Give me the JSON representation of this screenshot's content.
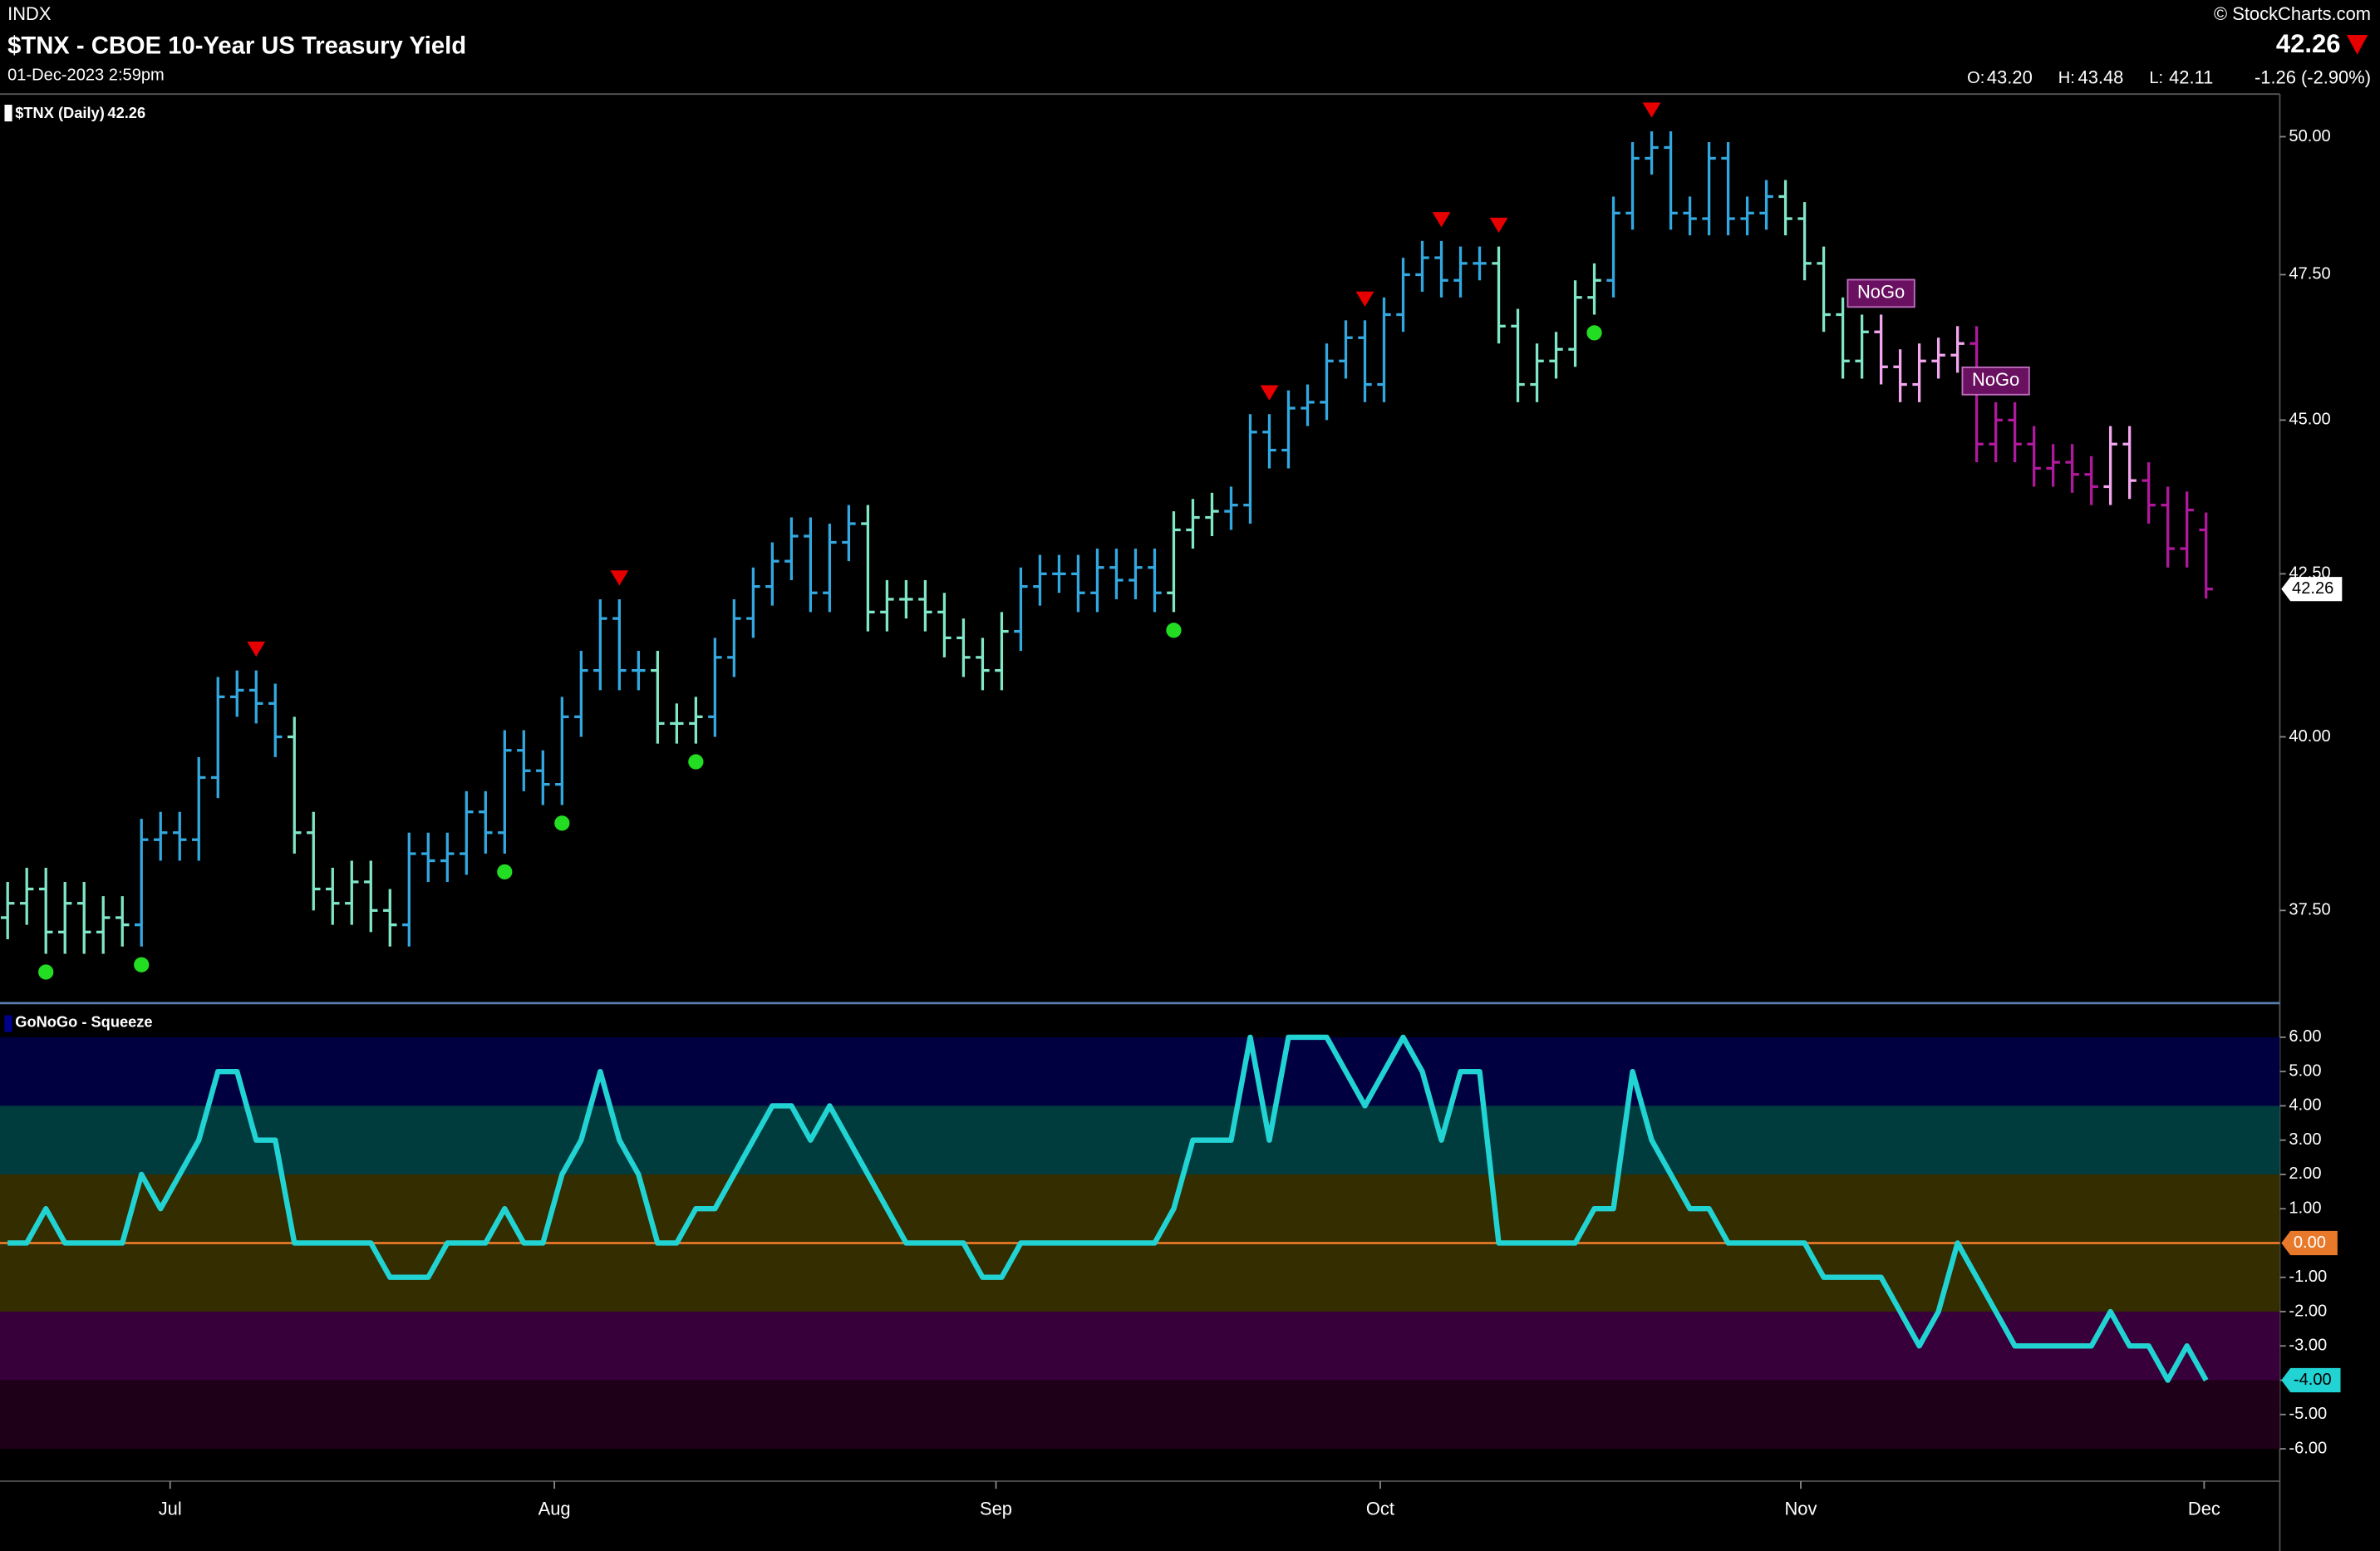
{
  "chart_data": [
    {
      "type": "ohlc",
      "exchange": "INDX",
      "title": "$TNX - CBOE 10-Year US Treasury Yield",
      "subtitle": "01-Dec-2023 2:59pm",
      "source": "© StockCharts.com",
      "quote": [
        {
          "label": "O:",
          "text": "43.20"
        },
        {
          "label": "H:",
          "text": "43.48"
        },
        {
          "label": "L:",
          "text": "42.11"
        }
      ],
      "change": "-1.26 (-2.90%)",
      "panel_label": "$TNX (Daily)",
      "open": [
        37.4,
        37.6,
        37.8,
        37.2,
        37.6,
        37.2,
        37.4,
        37.3,
        38.5,
        38.6,
        38.5,
        39.4,
        40.6,
        40.7,
        40.5,
        40.0,
        38.6,
        37.8,
        37.6,
        37.9,
        37.5,
        37.3,
        38.3,
        38.2,
        38.3,
        38.9,
        38.6,
        39.8,
        39.5,
        39.3,
        40.3,
        41.0,
        41.8,
        41.0,
        41.0,
        40.2,
        40.2,
        40.3,
        41.2,
        41.8,
        42.3,
        42.7,
        43.1,
        42.2,
        43.0,
        43.3,
        41.9,
        42.1,
        42.1,
        41.9,
        41.5,
        41.2,
        41.0,
        41.6,
        42.3,
        42.5,
        42.5,
        42.2,
        42.6,
        42.4,
        42.6,
        42.2,
        43.2,
        43.4,
        43.5,
        43.6,
        44.8,
        44.5,
        45.2,
        45.3,
        46.0,
        46.4,
        45.6,
        46.8,
        47.5,
        47.8,
        47.4,
        47.7,
        47.7,
        46.6,
        45.6,
        46.0,
        46.2,
        47.1,
        47.4,
        48.6,
        49.6,
        49.8,
        48.6,
        48.5,
        49.6,
        48.5,
        48.6,
        48.9,
        48.5,
        47.7,
        46.8,
        46.0,
        46.5,
        45.9,
        45.6,
        46.0,
        46.1,
        46.3,
        44.6,
        45.0,
        44.6,
        44.2,
        44.3,
        44.1,
        43.9,
        44.6,
        44.0,
        43.6,
        42.9,
        43.2
      ],
      "high": [
        37.9,
        38.1,
        38.1,
        37.9,
        37.9,
        37.7,
        37.7,
        38.8,
        38.9,
        38.9,
        39.7,
        40.9,
        41.0,
        41.0,
        40.8,
        40.3,
        38.9,
        38.1,
        38.2,
        38.2,
        37.8,
        38.6,
        38.6,
        38.6,
        39.2,
        39.2,
        40.1,
        40.1,
        39.8,
        40.6,
        41.3,
        42.1,
        42.1,
        41.3,
        41.3,
        40.5,
        40.6,
        41.5,
        42.1,
        42.6,
        43.0,
        43.4,
        43.4,
        43.3,
        43.6,
        43.6,
        42.4,
        42.4,
        42.4,
        42.2,
        41.8,
        41.5,
        41.9,
        42.6,
        42.8,
        42.8,
        42.8,
        42.9,
        42.9,
        42.9,
        42.9,
        43.5,
        43.7,
        43.8,
        43.9,
        45.1,
        45.1,
        45.5,
        45.6,
        46.3,
        46.7,
        46.7,
        47.1,
        47.8,
        48.1,
        48.1,
        48.0,
        48.0,
        48.0,
        46.9,
        46.3,
        46.5,
        47.4,
        47.7,
        48.9,
        49.9,
        50.1,
        50.1,
        48.9,
        49.9,
        49.9,
        48.9,
        49.2,
        49.2,
        48.8,
        48.0,
        47.1,
        46.8,
        46.8,
        46.2,
        46.3,
        46.4,
        46.6,
        46.6,
        45.3,
        45.3,
        44.9,
        44.6,
        44.6,
        44.4,
        44.9,
        44.9,
        44.3,
        43.9,
        43.82,
        43.48
      ],
      "low": [
        37.1,
        37.3,
        36.9,
        36.9,
        36.9,
        36.9,
        37.0,
        37.0,
        38.2,
        38.2,
        38.2,
        39.1,
        40.3,
        40.2,
        39.7,
        38.3,
        37.5,
        37.3,
        37.3,
        37.2,
        37.0,
        37.0,
        37.9,
        37.9,
        38.0,
        38.3,
        38.3,
        39.2,
        39.0,
        39.0,
        40.0,
        40.7,
        40.7,
        40.7,
        39.9,
        39.9,
        39.9,
        40.0,
        40.9,
        41.5,
        42.0,
        42.4,
        41.9,
        41.9,
        42.7,
        41.6,
        41.6,
        41.8,
        41.6,
        41.2,
        40.9,
        40.7,
        40.7,
        41.3,
        42.0,
        42.2,
        41.9,
        41.9,
        42.1,
        42.1,
        41.9,
        41.9,
        42.9,
        43.1,
        43.2,
        43.3,
        44.2,
        44.2,
        44.9,
        45.0,
        45.7,
        45.3,
        45.3,
        46.5,
        47.2,
        47.1,
        47.1,
        47.4,
        46.3,
        45.3,
        45.3,
        45.7,
        45.9,
        46.8,
        47.1,
        48.3,
        49.3,
        48.3,
        48.2,
        48.2,
        48.2,
        48.2,
        48.3,
        48.2,
        47.4,
        46.5,
        45.7,
        45.7,
        45.6,
        45.3,
        45.3,
        45.7,
        45.8,
        44.3,
        44.3,
        44.3,
        43.9,
        43.9,
        43.8,
        43.6,
        43.6,
        43.7,
        43.3,
        42.6,
        42.6,
        42.11
      ],
      "close": [
        37.6,
        37.8,
        37.2,
        37.6,
        37.2,
        37.4,
        37.3,
        38.5,
        38.6,
        38.5,
        39.4,
        40.6,
        40.7,
        40.5,
        40.0,
        38.6,
        37.8,
        37.6,
        37.9,
        37.5,
        37.3,
        38.3,
        38.2,
        38.3,
        38.9,
        38.6,
        39.8,
        39.5,
        39.3,
        40.3,
        41.0,
        41.8,
        41.0,
        41.0,
        40.2,
        40.2,
        40.3,
        41.2,
        41.8,
        42.3,
        42.7,
        43.1,
        42.2,
        43.0,
        43.3,
        41.9,
        42.1,
        42.1,
        41.9,
        41.5,
        41.2,
        41.0,
        41.6,
        42.3,
        42.5,
        42.5,
        42.2,
        42.6,
        42.4,
        42.6,
        42.2,
        43.2,
        43.4,
        43.5,
        43.6,
        44.8,
        44.5,
        45.2,
        45.3,
        46.0,
        46.4,
        45.6,
        46.8,
        47.5,
        47.8,
        47.4,
        47.7,
        47.7,
        46.6,
        45.6,
        46.0,
        46.2,
        47.1,
        47.4,
        48.6,
        49.6,
        49.8,
        48.6,
        48.5,
        49.6,
        48.5,
        48.6,
        48.9,
        48.5,
        47.7,
        46.8,
        46.0,
        46.5,
        45.9,
        45.6,
        46.0,
        46.1,
        46.3,
        44.6,
        45.0,
        44.6,
        44.2,
        44.3,
        44.1,
        43.9,
        44.6,
        44.0,
        43.6,
        42.9,
        43.52,
        42.26
      ],
      "colors": [
        "#80e6c8",
        "#80e6c8",
        "#80e6c8",
        "#80e6c8",
        "#80e6c8",
        "#80e6c8",
        "#80e6c8",
        "#33a8e0",
        "#33a8e0",
        "#33a8e0",
        "#33a8e0",
        "#33a8e0",
        "#33a8e0",
        "#33a8e0",
        "#33a8e0",
        "#80e6c8",
        "#80e6c8",
        "#80e6c8",
        "#80e6c8",
        "#80e6c8",
        "#80e6c8",
        "#33a8e0",
        "#33a8e0",
        "#33a8e0",
        "#33a8e0",
        "#33a8e0",
        "#33a8e0",
        "#33a8e0",
        "#33a8e0",
        "#33a8e0",
        "#33a8e0",
        "#33a8e0",
        "#33a8e0",
        "#33a8e0",
        "#80e6c8",
        "#80e6c8",
        "#80e6c8",
        "#33a8e0",
        "#33a8e0",
        "#33a8e0",
        "#33a8e0",
        "#33a8e0",
        "#33a8e0",
        "#33a8e0",
        "#33a8e0",
        "#80e6c8",
        "#80e6c8",
        "#80e6c8",
        "#80e6c8",
        "#80e6c8",
        "#80e6c8",
        "#80e6c8",
        "#80e6c8",
        "#33a8e0",
        "#33a8e0",
        "#33a8e0",
        "#33a8e0",
        "#33a8e0",
        "#33a8e0",
        "#33a8e0",
        "#33a8e0",
        "#80e6c8",
        "#80e6c8",
        "#80e6c8",
        "#33a8e0",
        "#33a8e0",
        "#33a8e0",
        "#33a8e0",
        "#33a8e0",
        "#33a8e0",
        "#33a8e0",
        "#33a8e0",
        "#33a8e0",
        "#33a8e0",
        "#33a8e0",
        "#33a8e0",
        "#33a8e0",
        "#33a8e0",
        "#80e6c8",
        "#80e6c8",
        "#80e6c8",
        "#80e6c8",
        "#80e6c8",
        "#80e6c8",
        "#33a8e0",
        "#33a8e0",
        "#33a8e0",
        "#33a8e0",
        "#33a8e0",
        "#33a8e0",
        "#33a8e0",
        "#33a8e0",
        "#33a8e0",
        "#80e6c8",
        "#80e6c8",
        "#80e6c8",
        "#80e6c8",
        "#80e6c8",
        "#f2a6ee",
        "#f2a6ee",
        "#f2a6ee",
        "#f2a6ee",
        "#f2a6ee",
        "#b0189e",
        "#b0189e",
        "#b0189e",
        "#b0189e",
        "#b0189e",
        "#b0189e",
        "#b0189e",
        "#f2a6ee",
        "#f2a6ee",
        "#b0189e",
        "#b0189e",
        "#b0189e",
        "#b0189e"
      ],
      "xlim": [
        -0.4,
        118.7
      ],
      "xticks": [
        {
          "value": 8.5,
          "label": "Jul"
        },
        {
          "value": 28.6,
          "label": "Aug"
        },
        {
          "value": 51.7,
          "label": "Sep"
        },
        {
          "value": 71.8,
          "label": "Oct"
        },
        {
          "value": 93.8,
          "label": "Nov"
        },
        {
          "value": 114.9,
          "label": "Dec"
        }
      ],
      "ylim": [
        36.25,
        50.77
      ],
      "log_scale": true,
      "yticks": [
        {
          "value": 37.5,
          "label": "37.50"
        },
        {
          "value": 40,
          "label": "40.00"
        },
        {
          "value": 42.5,
          "label": "42.50"
        },
        {
          "value": 45,
          "label": "45.00"
        },
        {
          "value": 47.5,
          "label": "47.50"
        },
        {
          "value": 50,
          "label": "50.00"
        }
      ],
      "go_dots": [
        2,
        7,
        26,
        29,
        36,
        61,
        83
      ],
      "go_dot_color": "#22dd22",
      "countertrend": [
        13,
        32,
        66,
        71,
        75,
        78,
        86
      ],
      "countertrend_color": "#e60000",
      "annotations": [
        {
          "text": "NoGo",
          "at": 98
        },
        {
          "text": "NoGo",
          "at": 104
        }
      ]
    },
    {
      "type": "line",
      "title": "GoNoGo - Squeeze",
      "color": "#22d3d3",
      "values": [
        0,
        0,
        1,
        0,
        0,
        0,
        0,
        2,
        1,
        2,
        3,
        5,
        5,
        3,
        3,
        0,
        0,
        0,
        0,
        0,
        -1,
        -1,
        -1,
        0,
        0,
        0,
        1,
        0,
        0,
        2,
        3,
        5,
        3,
        2,
        0,
        0,
        1,
        1,
        2,
        3,
        4,
        4,
        3,
        4,
        3,
        2,
        1,
        0,
        0,
        0,
        0,
        -1,
        -1,
        0,
        0,
        0,
        0,
        0,
        0,
        0,
        0,
        1,
        3,
        3,
        3,
        6,
        3,
        6,
        6,
        6,
        5,
        4,
        5,
        6,
        5,
        3,
        5,
        5,
        0,
        0,
        0,
        0,
        0,
        1,
        1,
        5,
        3,
        2,
        1,
        1,
        0,
        0,
        0,
        0,
        0,
        -1,
        -1,
        -1,
        -1,
        -2,
        -3,
        -2,
        0,
        -1,
        -2,
        -3,
        -3,
        -3,
        -3,
        -3,
        -2,
        -3,
        -3,
        -4,
        -3,
        -4
      ],
      "last_label": "-4.00",
      "ylim": [
        -6.9,
        6.95
      ],
      "yticks": [
        {
          "value": -6,
          "label": "-6.00"
        },
        {
          "value": -5,
          "label": "-5.00"
        },
        {
          "value": -4,
          "label": "-4.00"
        },
        {
          "value": -3,
          "label": "-3.00"
        },
        {
          "value": -2,
          "label": "-2.00"
        },
        {
          "value": -1,
          "label": "-1.00"
        },
        {
          "value": 1,
          "label": "1.00"
        },
        {
          "value": 2,
          "label": "2.00"
        },
        {
          "value": 3,
          "label": "3.00"
        },
        {
          "value": 4,
          "label": "4.00"
        },
        {
          "value": 5,
          "label": "5.00"
        },
        {
          "value": 6,
          "label": "6.00"
        }
      ],
      "zero_line": {
        "value": 0,
        "label": "0.00",
        "color": "#e8792a"
      },
      "bands": [
        {
          "from": 4,
          "to": 6,
          "color": "#000040"
        },
        {
          "from": 2,
          "to": 4,
          "color": "#003c3e"
        },
        {
          "from": -2,
          "to": 2,
          "color": "#332d00"
        },
        {
          "from": -4,
          "to": -2,
          "color": "#38003a"
        },
        {
          "from": -6,
          "to": -4,
          "color": "#1e0018"
        }
      ]
    }
  ]
}
